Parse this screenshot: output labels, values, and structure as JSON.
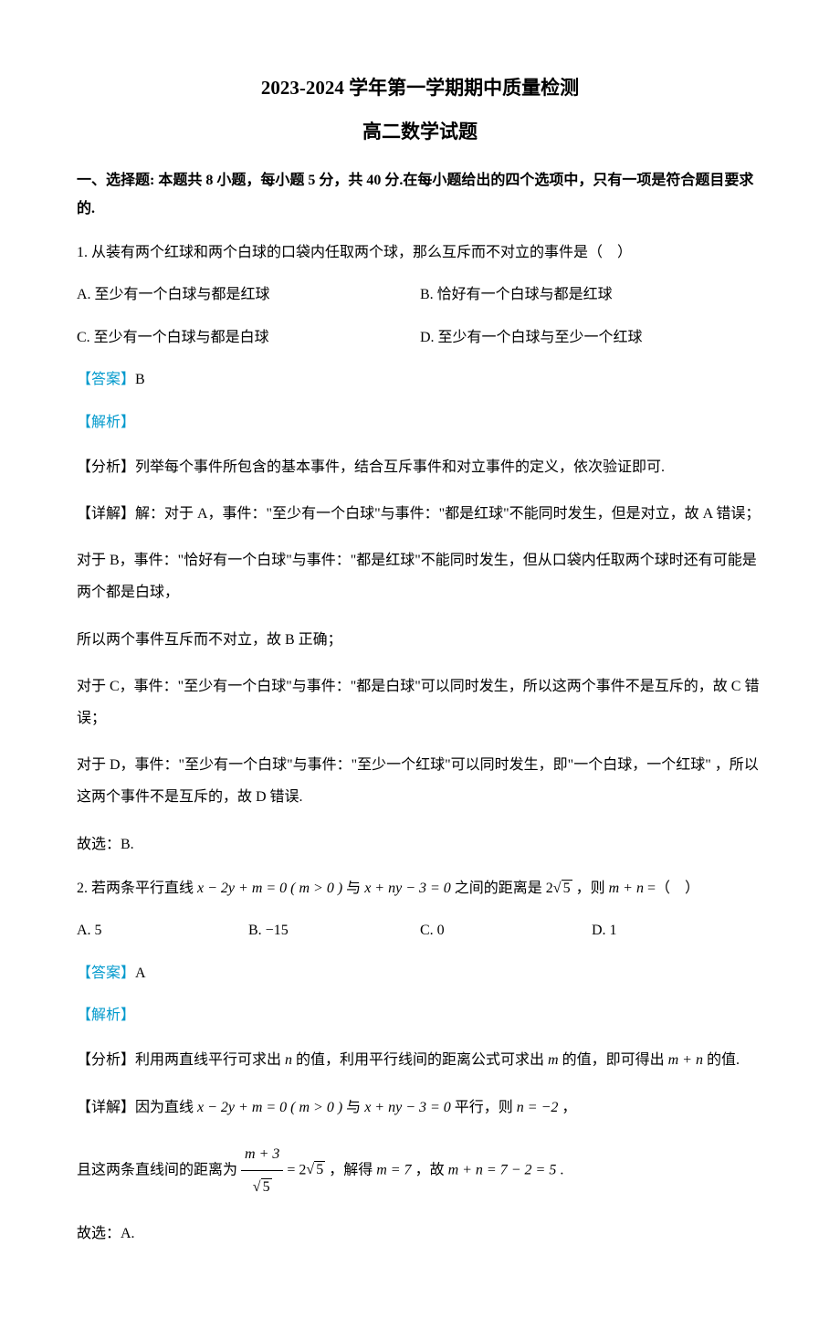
{
  "header": {
    "main_title": "2023-2024 学年第一学期期中质量检测",
    "sub_title": "高二数学试题"
  },
  "section_heading": "一、选择题: 本题共 8 小题，每小题 5 分，共 40 分.在每小题给出的四个选项中，只有一项是符合题目要求的.",
  "q1": {
    "prompt": "1. 从装有两个红球和两个白球的口袋内任取两个球，那么互斥而不对立的事件是（    ）",
    "options": {
      "A": "A. 至少有一个白球与都是红球",
      "B": "B. 恰好有一个白球与都是红球",
      "C": "C. 至少有一个白球与都是白球",
      "D": "D. 至少有一个白球与至少一个红球"
    },
    "answer_label": "【答案】",
    "answer_value": "B",
    "analysis_label": "【解析】",
    "fenxi": "【分析】列举每个事件所包含的基本事件，结合互斥事件和对立事件的定义，依次验证即可.",
    "detail_a": "【详解】解：对于 A，事件：\"至少有一个白球\"与事件：\"都是红球\"不能同时发生，但是对立，故 A 错误；",
    "detail_b": "对于 B，事件：\"恰好有一个白球\"与事件：\"都是红球\"不能同时发生，但从口袋内任取两个球时还有可能是两个都是白球，",
    "detail_b2": "所以两个事件互斥而不对立，故 B 正确；",
    "detail_c": "对于 C，事件：\"至少有一个白球\"与事件：\"都是白球\"可以同时发生，所以这两个事件不是互斥的，故 C 错误；",
    "detail_d": "对于 D，事件：\"至少有一个白球\"与事件：\"至少一个红球\"可以同时发生，即\"一个白球，一个红球\" ，所以这两个事件不是互斥的，故 D 错误.",
    "conclusion": "故选：B."
  },
  "q2": {
    "prompt_pre": "2. 若两条平行直线 ",
    "expr1": "x − 2y + m = 0 ( m > 0 )",
    "prompt_mid1": " 与 ",
    "expr2": "x + ny − 3 = 0",
    "prompt_mid2": " 之间的距离是 ",
    "dist_coef": "2",
    "dist_rad": "5",
    "prompt_mid3": " ，则 ",
    "expr3": "m + n",
    "prompt_post": " =（    ）",
    "options": {
      "A": "A. 5",
      "B": "B. −15",
      "C": "C. 0",
      "D": "D. 1"
    },
    "answer_label": "【答案】",
    "answer_value": "A",
    "analysis_label": "【解析】",
    "fenxi_pre": "【分析】利用两直线平行可求出 ",
    "fenxi_n": "n",
    "fenxi_mid1": " 的值，利用平行线间的距离公式可求出 ",
    "fenxi_m": "m",
    "fenxi_mid2": " 的值，即可得出 ",
    "fenxi_mn": "m + n",
    "fenxi_post": " 的值.",
    "detail_pre": "【详解】因为直线 ",
    "detail_expr1": "x − 2y + m = 0 ( m > 0 )",
    "detail_mid1": " 与 ",
    "detail_expr2": "x + ny − 3 = 0",
    "detail_mid2": " 平行，则 ",
    "detail_neq": "n = −2",
    "detail_post": " ，",
    "dist_pre": "且这两条直线间的距离为 ",
    "frac_num": "m + 3",
    "frac_den_rad": "5",
    "eq_rhs_coef": "2",
    "eq_rhs_rad": "5",
    "dist_mid1": " ，解得 ",
    "solve_m": "m = 7",
    "dist_mid2": " ，故 ",
    "solve_final": "m + n = 7 − 2 = 5",
    "dist_post": " .",
    "conclusion": "故选：A."
  },
  "colors": {
    "text": "#000000",
    "accent": "#0099cc",
    "background": "#ffffff"
  },
  "fonts": {
    "body": "SimSun",
    "math": "Times New Roman",
    "title_size_pt": 21,
    "body_size_pt": 16
  }
}
